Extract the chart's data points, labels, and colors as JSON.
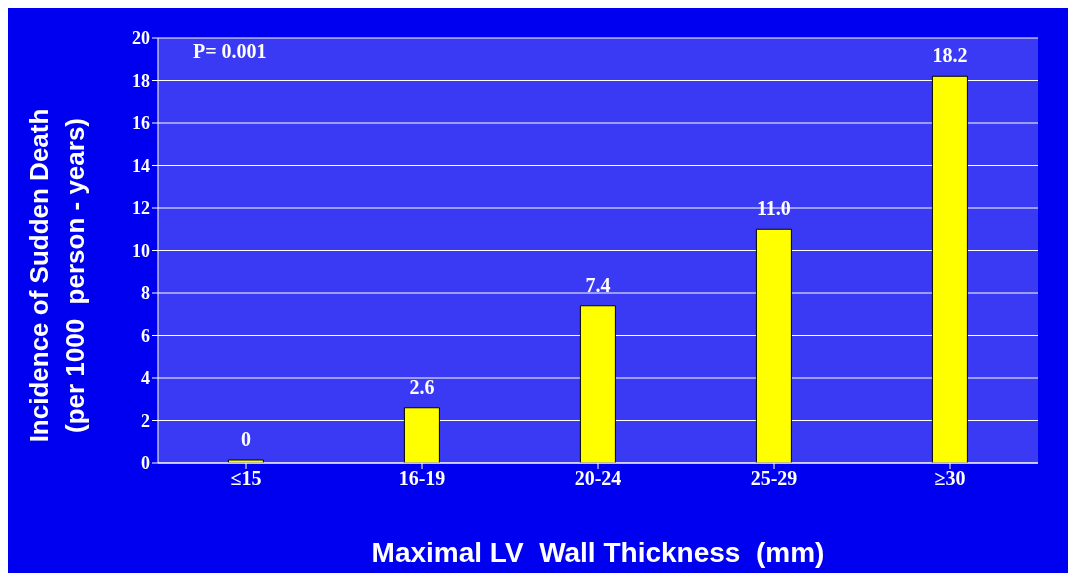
{
  "chart_data": {
    "type": "bar",
    "categories": [
      "≤15",
      "16-19",
      "20-24",
      "25-29",
      "≥30"
    ],
    "values": [
      0,
      2.6,
      7.4,
      11.0,
      18.2
    ],
    "value_labels": [
      "0",
      "2.6",
      "7.4",
      "11.0",
      "18.2"
    ],
    "color": "#ffff00",
    "xlabel": "Maximal LV  Wall Thickness  (mm)",
    "ylabel": "Incidence of Sudden Death\n(per 1000  person - years)",
    "annotations": [
      "P= 0.001"
    ],
    "ylim": [
      0,
      20
    ],
    "yticks": [
      0,
      2,
      4,
      6,
      8,
      10,
      12,
      14,
      16,
      18,
      20
    ],
    "grid": "y"
  }
}
